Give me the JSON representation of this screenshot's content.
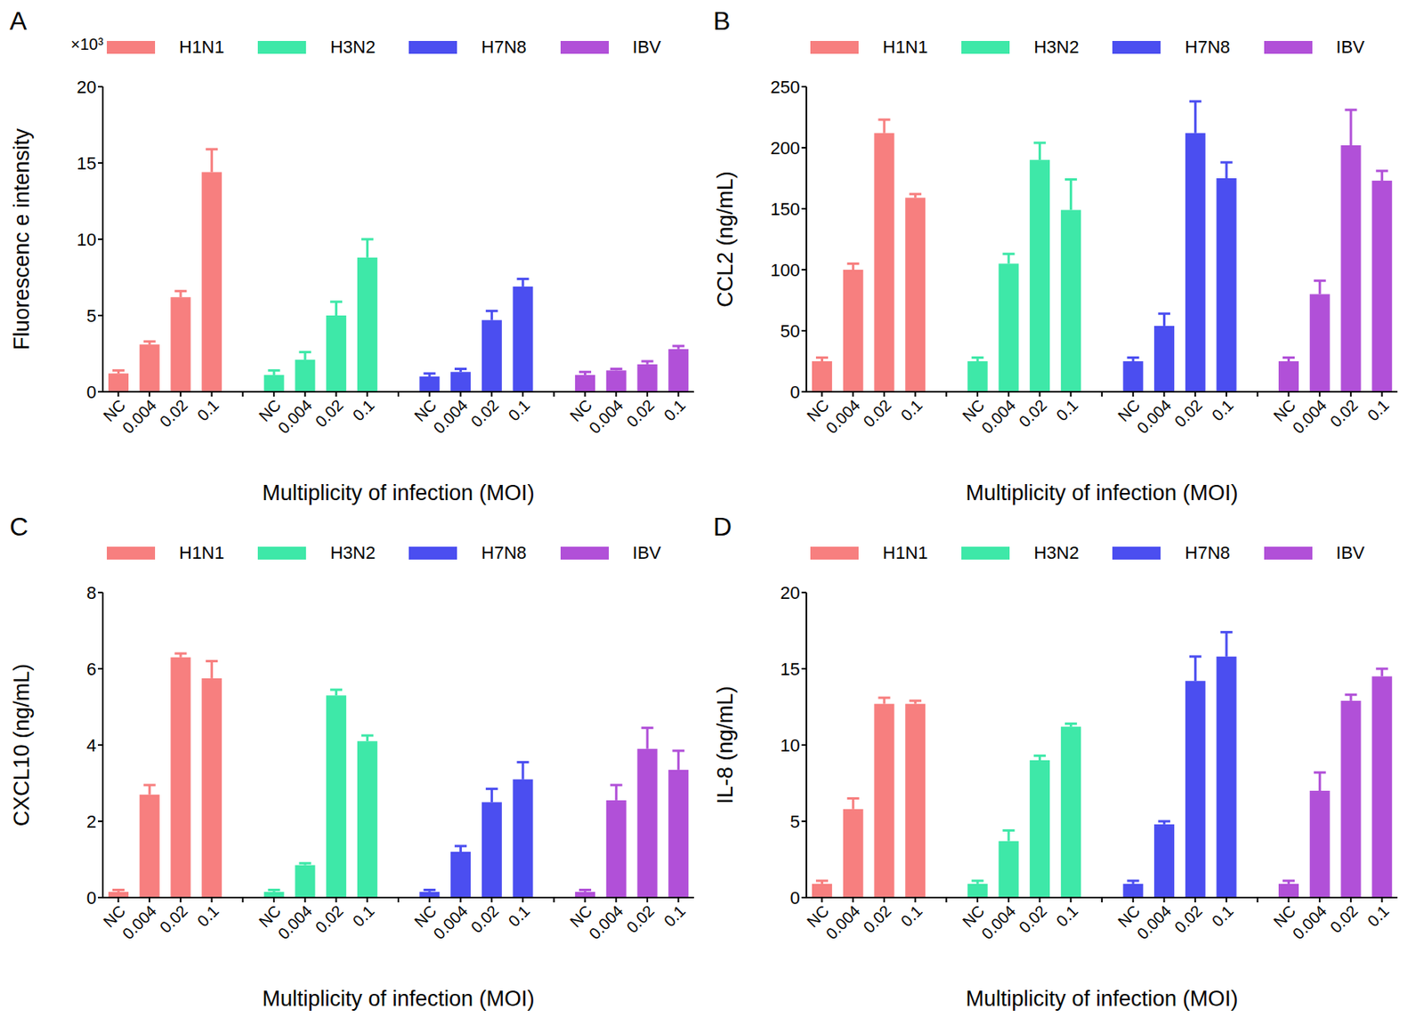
{
  "chart_data": [
    {
      "type": "bar",
      "title": "A",
      "annotations": [
        "×10³"
      ],
      "x_label": "Multiplicity of infection (MOI)",
      "y_label": "Fluorescenc e intensity",
      "legend": "top",
      "categories": [
        "NC",
        "0.004",
        "0.02",
        "0.1"
      ],
      "ylim": [
        0,
        20
      ],
      "yticks": [
        0,
        5,
        10,
        15,
        20
      ],
      "series": [
        {
          "name": "H1N1",
          "color": "#f77f7f",
          "values": [
            1.2,
            3.1,
            6.2,
            14.4
          ],
          "errors": [
            0.2,
            0.2,
            0.4,
            1.5
          ]
        },
        {
          "name": "H3N2",
          "color": "#3ee8a8",
          "values": [
            1.1,
            2.1,
            5.0,
            8.8
          ],
          "errors": [
            0.3,
            0.5,
            0.9,
            1.2
          ]
        },
        {
          "name": "H7N8",
          "color": "#4b4ef0",
          "values": [
            1.0,
            1.3,
            4.7,
            6.9
          ],
          "errors": [
            0.2,
            0.2,
            0.6,
            0.5
          ]
        },
        {
          "name": "IBV",
          "color": "#b150d8",
          "values": [
            1.1,
            1.4,
            1.8,
            2.8
          ],
          "errors": [
            0.2,
            0.1,
            0.2,
            0.2
          ]
        }
      ]
    },
    {
      "type": "bar",
      "title": "B",
      "x_label": "Multiplicity of infection (MOI)",
      "y_label": "CCL2 (ng/mL)",
      "legend": "top",
      "categories": [
        "NC",
        "0.004",
        "0.02",
        "0.1"
      ],
      "ylim": [
        0,
        250
      ],
      "yticks": [
        0,
        50,
        100,
        150,
        200,
        250
      ],
      "series": [
        {
          "name": "H1N1",
          "color": "#f77f7f",
          "values": [
            25,
            100,
            212,
            159
          ],
          "errors": [
            3,
            5,
            11,
            3
          ]
        },
        {
          "name": "H3N2",
          "color": "#3ee8a8",
          "values": [
            25,
            105,
            190,
            149
          ],
          "errors": [
            3,
            8,
            14,
            25
          ]
        },
        {
          "name": "H7N8",
          "color": "#4b4ef0",
          "values": [
            25,
            54,
            212,
            175
          ],
          "errors": [
            3,
            10,
            26,
            13
          ]
        },
        {
          "name": "IBV",
          "color": "#b150d8",
          "values": [
            25,
            80,
            202,
            173
          ],
          "errors": [
            3,
            11,
            29,
            8
          ]
        }
      ]
    },
    {
      "type": "bar",
      "title": "C",
      "x_label": "Multiplicity of infection (MOI)",
      "y_label": "CXCL10 (ng/mL)",
      "legend": "top",
      "categories": [
        "NC",
        "0.004",
        "0.02",
        "0.1"
      ],
      "ylim": [
        0,
        8
      ],
      "yticks": [
        0,
        2,
        4,
        6,
        8
      ],
      "series": [
        {
          "name": "H1N1",
          "color": "#f77f7f",
          "values": [
            0.15,
            2.7,
            6.3,
            5.75
          ],
          "errors": [
            0.05,
            0.25,
            0.1,
            0.45
          ]
        },
        {
          "name": "H3N2",
          "color": "#3ee8a8",
          "values": [
            0.15,
            0.85,
            5.3,
            4.1
          ],
          "errors": [
            0.05,
            0.05,
            0.15,
            0.15
          ]
        },
        {
          "name": "H7N8",
          "color": "#4b4ef0",
          "values": [
            0.15,
            1.2,
            2.5,
            3.1
          ],
          "errors": [
            0.05,
            0.15,
            0.35,
            0.45
          ]
        },
        {
          "name": "IBV",
          "color": "#b150d8",
          "values": [
            0.15,
            2.55,
            3.9,
            3.35
          ],
          "errors": [
            0.05,
            0.4,
            0.55,
            0.5
          ]
        }
      ]
    },
    {
      "type": "bar",
      "title": "D",
      "x_label": "Multiplicity of infection (MOI)",
      "y_label": "IL-8 (ng/mL)",
      "legend": "top",
      "categories": [
        "NC",
        "0.004",
        "0.02",
        "0.1"
      ],
      "ylim": [
        0,
        20
      ],
      "yticks": [
        0,
        5,
        10,
        15,
        20
      ],
      "series": [
        {
          "name": "H1N1",
          "color": "#f77f7f",
          "values": [
            0.9,
            5.8,
            12.7,
            12.7
          ],
          "errors": [
            0.2,
            0.7,
            0.4,
            0.2
          ]
        },
        {
          "name": "H3N2",
          "color": "#3ee8a8",
          "values": [
            0.9,
            3.7,
            9.0,
            11.2
          ],
          "errors": [
            0.2,
            0.7,
            0.3,
            0.2
          ]
        },
        {
          "name": "H7N8",
          "color": "#4b4ef0",
          "values": [
            0.9,
            4.8,
            14.2,
            15.8
          ],
          "errors": [
            0.2,
            0.2,
            1.6,
            1.6
          ]
        },
        {
          "name": "IBV",
          "color": "#b150d8",
          "values": [
            0.9,
            7.0,
            12.9,
            14.5
          ],
          "errors": [
            0.2,
            1.2,
            0.4,
            0.5
          ]
        }
      ]
    }
  ]
}
